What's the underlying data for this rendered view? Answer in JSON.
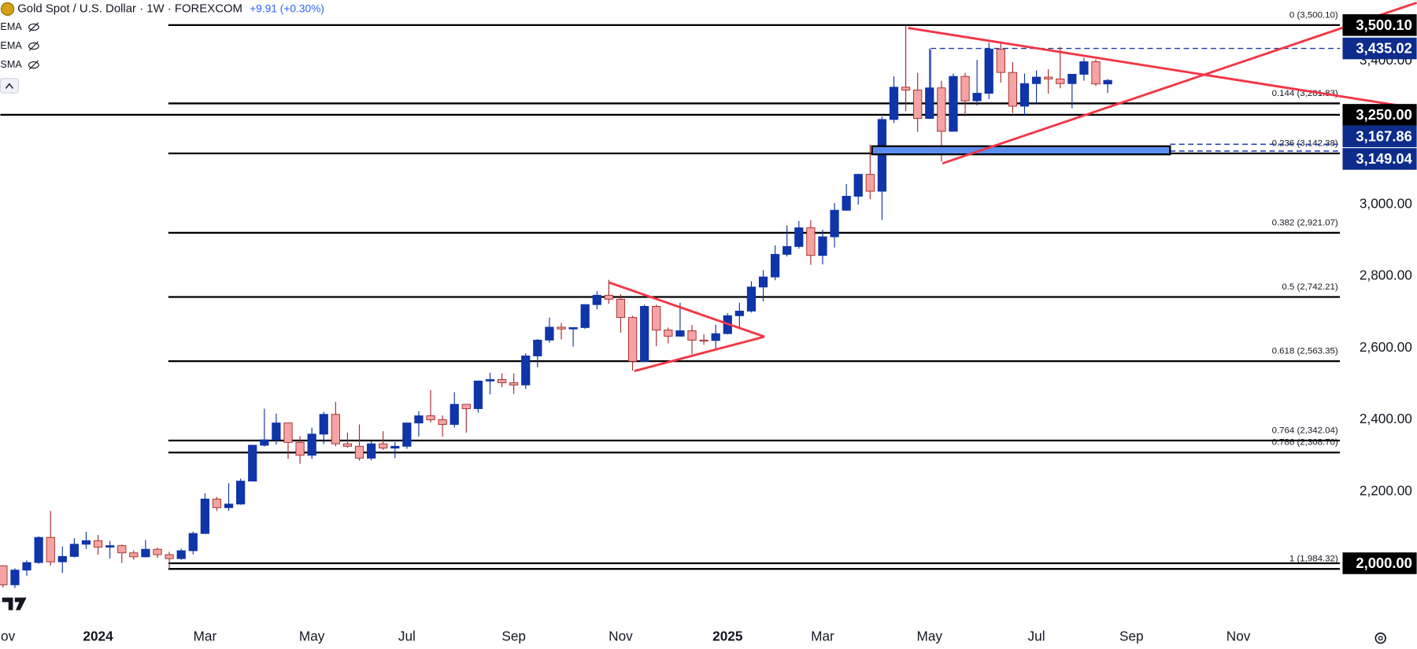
{
  "chart_data": {
    "type": "candlestick",
    "title": "Gold Spot / U.S. Dollar · 1W · FOREXCOM",
    "subtitle": "+9.91 (+0.30%)",
    "indicators": [
      "EMA",
      "EMA",
      "SMA"
    ],
    "categories": [
      "Nov",
      null,
      null,
      null,
      null,
      null,
      null,
      null,
      "2024",
      null,
      null,
      null,
      null,
      null,
      null,
      null,
      null,
      "Mar",
      null,
      null,
      null,
      null,
      null,
      null,
      null,
      null,
      "May",
      null,
      null,
      null,
      null,
      null,
      null,
      null,
      "Jul",
      null,
      null,
      null,
      null,
      null,
      null,
      null,
      null,
      "Sep",
      null,
      null,
      null,
      null,
      null,
      null,
      null,
      null,
      "Nov",
      null,
      null,
      null,
      null,
      null,
      null,
      null,
      null,
      "2025",
      null,
      null,
      null,
      null,
      null,
      null,
      null,
      "Mar",
      null,
      null,
      null,
      null,
      null,
      null,
      null,
      null,
      "May",
      null,
      null,
      null,
      null,
      null,
      null,
      null,
      null,
      "Jul",
      null,
      null,
      null,
      null,
      null,
      null,
      null,
      "Sep",
      null,
      null,
      null,
      null,
      null,
      null,
      null,
      null,
      "Nov"
    ],
    "open": [
      1993,
      1940,
      1981,
      2002,
      2072,
      2004,
      2019,
      2053,
      2063,
      2045,
      2049,
      2029,
      2018,
      2039,
      2024,
      2013,
      2035,
      2083,
      2179,
      2155,
      2165,
      2229,
      2329,
      2344,
      2391,
      2337,
      2301,
      2360,
      2415,
      2333,
      2326,
      2293,
      2333,
      2321,
      2326,
      2391,
      2411,
      2400,
      2387,
      2443,
      2431,
      2508,
      2512,
      2503,
      2497,
      2578,
      2622,
      2658,
      2653,
      2657,
      2721,
      2747,
      2736,
      2685,
      2563,
      2716,
      2650,
      2633,
      2648,
      2622,
      2621,
      2640,
      2690,
      2703,
      2770,
      2798,
      2861,
      2883,
      2935,
      2858,
      2910,
      2984,
      3023,
      3084,
      3037,
      3237,
      3327,
      3319,
      3240,
      3325,
      3204,
      3357,
      3289,
      3310,
      3433,
      3368,
      3274,
      3337,
      3355,
      3350,
      3337,
      3363,
      3398,
      3336,
      null,
      null,
      null,
      null,
      null,
      null,
      null,
      null,
      null,
      null,
      null
    ],
    "high": [
      1994,
      1986,
      2008,
      2075,
      2146,
      2047,
      2070,
      2088,
      2079,
      2062,
      2052,
      2036,
      2065,
      2044,
      2032,
      2041,
      2088,
      2195,
      2185,
      2223,
      2236,
      2330,
      2431,
      2417,
      2392,
      2354,
      2378,
      2422,
      2450,
      2364,
      2387,
      2340,
      2368,
      2338,
      2392,
      2424,
      2483,
      2412,
      2477,
      2444,
      2509,
      2531,
      2529,
      2529,
      2585,
      2625,
      2685,
      2670,
      2654,
      2722,
      2758,
      2790,
      2750,
      2690,
      2721,
      2721,
      2657,
      2726,
      2664,
      2638,
      2665,
      2697,
      2726,
      2786,
      2817,
      2886,
      2942,
      2954,
      2956,
      2930,
      3004,
      3057,
      3086,
      3167,
      3245,
      3357,
      3500,
      3367,
      3435,
      3345,
      3365,
      3367,
      3403,
      3451,
      3452,
      3397,
      3365,
      3374,
      3377,
      3439,
      3363,
      3409,
      3404,
      3350,
      null,
      null,
      null,
      null,
      null,
      null,
      null,
      null,
      null,
      null,
      null
    ],
    "low": [
      1932,
      1931,
      1965,
      1999,
      1993,
      1973,
      2016,
      2040,
      2024,
      2013,
      2001,
      2010,
      2016,
      2015,
      1984,
      2010,
      2025,
      2082,
      2146,
      2146,
      2163,
      2228,
      2325,
      2331,
      2291,
      2277,
      2291,
      2332,
      2326,
      2322,
      2286,
      2287,
      2316,
      2293,
      2319,
      2353,
      2392,
      2353,
      2378,
      2364,
      2420,
      2471,
      2491,
      2472,
      2486,
      2546,
      2614,
      2624,
      2604,
      2653,
      2708,
      2723,
      2643,
      2537,
      2561,
      2605,
      2613,
      2632,
      2583,
      2609,
      2597,
      2638,
      2657,
      2699,
      2730,
      2789,
      2855,
      2877,
      2832,
      2833,
      2880,
      2982,
      3000,
      3015,
      2957,
      3227,
      3260,
      3202,
      3238,
      3120,
      3204,
      3246,
      3276,
      3294,
      3340,
      3255,
      3247,
      3282,
      3309,
      3324,
      3268,
      3345,
      3330,
      3311,
      null,
      null,
      null,
      null,
      null,
      null,
      null,
      null,
      null,
      null,
      null
    ],
    "close": [
      1940,
      1981,
      2002,
      2072,
      2004,
      2019,
      2053,
      2063,
      2045,
      2049,
      2029,
      2018,
      2039,
      2024,
      2013,
      2035,
      2083,
      2179,
      2155,
      2165,
      2229,
      2329,
      2344,
      2391,
      2337,
      2301,
      2360,
      2415,
      2333,
      2326,
      2293,
      2333,
      2321,
      2326,
      2391,
      2411,
      2400,
      2387,
      2443,
      2431,
      2508,
      2512,
      2503,
      2497,
      2578,
      2622,
      2658,
      2653,
      2657,
      2721,
      2747,
      2736,
      2685,
      2563,
      2716,
      2650,
      2633,
      2648,
      2622,
      2621,
      2640,
      2690,
      2703,
      2770,
      2798,
      2861,
      2883,
      2935,
      2858,
      2910,
      2984,
      3023,
      3084,
      3037,
      3237,
      3327,
      3319,
      3240,
      3325,
      3204,
      3357,
      3289,
      3310,
      3433,
      3368,
      3274,
      3337,
      3355,
      3350,
      3337,
      3363,
      3398,
      3336,
      3346,
      null,
      null,
      null,
      null,
      null,
      null,
      null,
      null,
      null,
      null,
      null
    ],
    "up_color": "#0f35a8",
    "down_color": "#f5a3a3",
    "down_border": "#a52a2a",
    "ylim": [
      1834,
      3570
    ],
    "yticks": [
      {
        "value": 2200,
        "label": "2,200.00"
      },
      {
        "value": 2400,
        "label": "2,400.00"
      },
      {
        "value": 2600,
        "label": "2,600.00"
      },
      {
        "value": 2800,
        "label": "2,800.00"
      },
      {
        "value": 3000,
        "label": "3,000.00"
      },
      {
        "value": 3400,
        "label": "3,400.00"
      }
    ],
    "grid": false,
    "fib_levels": [
      {
        "value": 3500.1,
        "label": "0 (3,500.10)"
      },
      {
        "value": 3281.83,
        "label": "0.144 (3,281.83)"
      },
      {
        "value": 3142.38,
        "label": "0.236 (3,142.38)"
      },
      {
        "value": 2921.07,
        "label": "0.382 (2,921.07)"
      },
      {
        "value": 2742.21,
        "label": "0.5 (2,742.21)"
      },
      {
        "value": 2563.35,
        "label": "0.618 (2,563.35)"
      },
      {
        "value": 2342.04,
        "label": "0.764 (2,342.04)"
      },
      {
        "value": 2308.7,
        "label": "0.786 (2,308.70)"
      },
      {
        "value": 1984.32,
        "label": "1 (1,984.32)"
      }
    ],
    "price_levels": [
      {
        "value": 3500.1,
        "label": "3,500.10",
        "color": "#000000",
        "line": "none"
      },
      {
        "value": 3435.02,
        "label": "3,435.02",
        "color": "#0d2c8c",
        "line": "dashed"
      },
      {
        "value": 3250.0,
        "label": "3,250.00",
        "color": "#000000",
        "line": "solid"
      },
      {
        "value": 3167.86,
        "label": "3,167.86",
        "color": "#0d2c8c",
        "line": "dashed"
      },
      {
        "value": 3149.04,
        "label": "3,149.04",
        "color": "#0d2c8c",
        "line": "dashed"
      },
      {
        "value": 2000.0,
        "label": "2,000.00",
        "color": "#000000",
        "line": "solid"
      }
    ]
  }
}
